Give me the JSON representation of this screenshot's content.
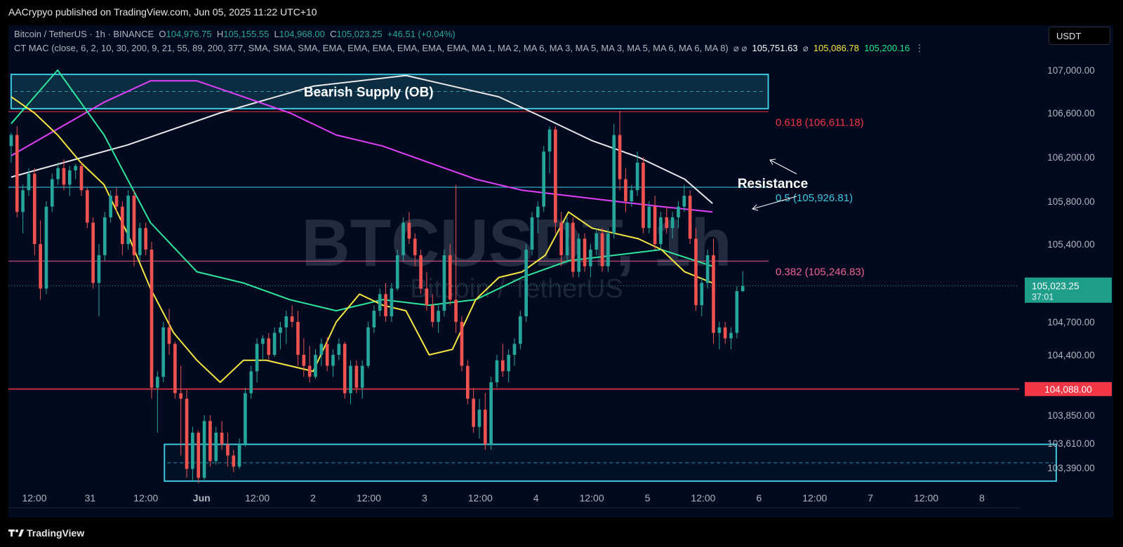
{
  "header": {
    "publisher": "AACrypyo published on TradingView.com, Jun 05, 2025 11:22 UTC+10",
    "symbol_line": "Bitcoin / TetherUS · 1h · BINANCE",
    "ohlc": {
      "o_label": "O",
      "o_value": "104,976.75",
      "h_label": "H",
      "h_value": "105,155.55",
      "l_label": "L",
      "l_value": "104,968.00",
      "c_label": "C",
      "c_value": "105,023.25",
      "change": "+46.51 (+0.04%)"
    },
    "indicator": "CT MAC (close, 6, 2, 10, 30, 200, 9, 21, 55, 89, 200, 377, SMA, SMA, SMA, EMA, EMA, EMA, EMA, EMA, EMA, MA 1, MA 2, MA 6, MA 3, MA 5, MA 3, MA 5, MA 6, MA 6, MA 8)",
    "ind_symbols": "⌀ ⌀",
    "ind_value_1": "105,751.63",
    "ind_value_2": "105,086.78",
    "ind_value_3": "105,200.16",
    "menu_icon": "⋮",
    "currency": "USDT"
  },
  "footer": {
    "brand": "TradingView"
  },
  "colors": {
    "background": "#020a1f",
    "up": "#26a69a",
    "down": "#ef5350",
    "ma_white": "#e8e8e8",
    "ma_magenta": "#e040fb",
    "ma_yellow": "#f5e642",
    "ma_green": "#2ee59d",
    "zone": "#3bc7e0",
    "support": "#f23645"
  },
  "chart_data": {
    "type": "candlestick",
    "watermark_symbol": "BTCUSDT, 1h",
    "watermark_name": "Bitcoin / TetherUS",
    "y_ticks": [
      107000,
      106600,
      106200,
      105800,
      105400,
      104700,
      104400,
      103850,
      103610,
      103390
    ],
    "y_tick_labels": [
      "107,000.00",
      "106,600.00",
      "106,200.00",
      "105,800.00",
      "105,400.00",
      "104,700.00",
      "104,400.00",
      "103,850.00",
      "103,610.00",
      "103,390.00"
    ],
    "x_ticks": [
      "12:00",
      "31",
      "12:00",
      "Jun",
      "12:00",
      "2",
      "12:00",
      "3",
      "12:00",
      "4",
      "12:00",
      "5",
      "12:00",
      "6",
      "12:00",
      "7",
      "12:00",
      "8"
    ],
    "x_tick_hours": [
      0,
      12,
      24,
      36,
      48,
      60,
      72,
      84,
      96,
      108,
      120,
      132,
      144,
      156,
      168,
      180,
      192,
      204
    ],
    "current_price": {
      "value": 105023.25,
      "label": "105,023.25",
      "countdown": "37:01"
    },
    "support_line": {
      "value": 104088,
      "label": "104,088.00"
    },
    "fib_levels": [
      {
        "label": "0.618 (106,611.18)",
        "value": 106611.18,
        "color": "#f23645"
      },
      {
        "label": "0.5 (105,926.81)",
        "value": 105926.81,
        "color": "#3bc7e0"
      },
      {
        "label": "0.382 (105,246.83)",
        "value": 105246.83,
        "color": "#f06292"
      }
    ],
    "zones": [
      {
        "label": "Bearish Supply (OB)",
        "top": 106960,
        "bottom": 106640,
        "start_hour": -5,
        "end_hour": 158
      },
      {
        "label": "",
        "top": 103600,
        "bottom": 103270,
        "start_hour": 28,
        "end_hour": 220
      }
    ],
    "annotation": {
      "label": "Resistance"
    },
    "candles_start_hour": -5,
    "candles": [
      [
        106300,
        106420,
        106150,
        106400
      ],
      [
        106400,
        106480,
        105650,
        105700
      ],
      [
        105700,
        105950,
        105500,
        105900
      ],
      [
        105900,
        106100,
        105850,
        106050
      ],
      [
        106050,
        106100,
        105300,
        105400
      ],
      [
        105400,
        105620,
        104900,
        105000
      ],
      [
        105000,
        105800,
        104950,
        105750
      ],
      [
        105750,
        106050,
        105700,
        106000
      ],
      [
        106000,
        106150,
        105950,
        106100
      ],
      [
        106100,
        106180,
        105900,
        105950
      ],
      [
        105950,
        106120,
        105850,
        106080
      ],
      [
        106080,
        106140,
        106000,
        106120
      ],
      [
        106120,
        106150,
        105850,
        105900
      ],
      [
        105900,
        105920,
        105550,
        105600
      ],
      [
        105600,
        105650,
        105000,
        105050
      ],
      [
        105050,
        105400,
        104750,
        105300
      ],
      [
        105300,
        105700,
        105250,
        105650
      ],
      [
        105650,
        105900,
        105600,
        105850
      ],
      [
        105850,
        105920,
        105700,
        105750
      ],
      [
        105750,
        105800,
        105300,
        105400
      ],
      [
        105400,
        105900,
        105350,
        105850
      ],
      [
        105850,
        105900,
        105200,
        105300
      ],
      [
        105300,
        105600,
        105250,
        105550
      ],
      [
        105550,
        105600,
        105300,
        105350
      ],
      [
        105350,
        105420,
        104000,
        104100
      ],
      [
        104100,
        104250,
        103700,
        104200
      ],
      [
        104200,
        104700,
        104150,
        104650
      ],
      [
        104650,
        104820,
        104400,
        104500
      ],
      [
        104500,
        104520,
        104000,
        104050
      ],
      [
        104050,
        104300,
        103500,
        104000
      ],
      [
        104000,
        104080,
        103300,
        103380
      ],
      [
        103380,
        103750,
        103280,
        103700
      ],
      [
        103700,
        103720,
        103250,
        103300
      ],
      [
        103300,
        103850,
        103280,
        103800
      ],
      [
        103800,
        103850,
        103400,
        103450
      ],
      [
        103450,
        103750,
        103420,
        103700
      ],
      [
        103700,
        103800,
        103550,
        103600
      ],
      [
        103600,
        103700,
        103400,
        103500
      ],
      [
        103500,
        103550,
        103350,
        103400
      ],
      [
        103400,
        103650,
        103380,
        103600
      ],
      [
        103600,
        104100,
        103580,
        104050
      ],
      [
        104050,
        104300,
        104000,
        104250
      ],
      [
        104250,
        104550,
        104150,
        104500
      ],
      [
        104500,
        104580,
        104350,
        104550
      ],
      [
        104550,
        104600,
        104350,
        104400
      ],
      [
        104400,
        104650,
        104380,
        104600
      ],
      [
        104600,
        104700,
        104450,
        104650
      ],
      [
        104650,
        104800,
        104500,
        104750
      ],
      [
        104750,
        104850,
        104650,
        104700
      ],
      [
        104700,
        104800,
        104300,
        104400
      ],
      [
        104400,
        104550,
        104200,
        104300
      ],
      [
        104300,
        104480,
        104150,
        104200
      ],
      [
        104200,
        104450,
        104180,
        104400
      ],
      [
        104400,
        104550,
        104300,
        104500
      ],
      [
        104500,
        104560,
        104250,
        104300
      ],
      [
        104300,
        104450,
        104200,
        104400
      ],
      [
        104400,
        104550,
        104350,
        104500
      ],
      [
        104500,
        104520,
        104000,
        104050
      ],
      [
        104050,
        104350,
        103950,
        104300
      ],
      [
        104300,
        104350,
        104050,
        104100
      ],
      [
        104100,
        104350,
        104000,
        104300
      ],
      [
        104300,
        104700,
        104280,
        104650
      ],
      [
        104650,
        104850,
        104600,
        104800
      ],
      [
        104800,
        105000,
        104750,
        104950
      ],
      [
        104950,
        105050,
        104700,
        104750
      ],
      [
        104750,
        105050,
        104700,
        105000
      ],
      [
        105000,
        105350,
        104980,
        105300
      ],
      [
        105300,
        105650,
        105250,
        105600
      ],
      [
        105600,
        105700,
        105400,
        105450
      ],
      [
        105450,
        105500,
        105200,
        105300
      ],
      [
        105300,
        105350,
        104950,
        105000
      ],
      [
        105000,
        105150,
        104800,
        104850
      ],
      [
        104850,
        104950,
        104650,
        104700
      ],
      [
        104700,
        104850,
        104600,
        104800
      ],
      [
        104800,
        105350,
        104750,
        105300
      ],
      [
        105300,
        105400,
        104850,
        104900
      ],
      [
        104900,
        105950,
        104600,
        104700
      ],
      [
        104700,
        104750,
        104250,
        104300
      ],
      [
        104300,
        104350,
        103950,
        104000
      ],
      [
        104000,
        104100,
        103700,
        103750
      ],
      [
        103750,
        104000,
        103650,
        103900
      ],
      [
        103900,
        104050,
        103550,
        103600
      ],
      [
        103600,
        104200,
        103550,
        104150
      ],
      [
        104150,
        104400,
        104100,
        104350
      ],
      [
        104350,
        104500,
        104200,
        104250
      ],
      [
        104250,
        104450,
        104150,
        104400
      ],
      [
        104400,
        104550,
        104300,
        104500
      ],
      [
        104500,
        104800,
        104450,
        104750
      ],
      [
        104750,
        105400,
        104700,
        105350
      ],
      [
        105350,
        105700,
        105300,
        105650
      ],
      [
        105650,
        105800,
        105500,
        105750
      ],
      [
        105750,
        106300,
        105700,
        106250
      ],
      [
        106250,
        106480,
        106050,
        106450
      ],
      [
        106450,
        106480,
        105500,
        105600
      ],
      [
        105600,
        105700,
        105200,
        105300
      ],
      [
        105300,
        105650,
        105250,
        105600
      ],
      [
        105600,
        105650,
        105100,
        105150
      ],
      [
        105150,
        105500,
        105100,
        105450
      ],
      [
        105450,
        105500,
        105150,
        105200
      ],
      [
        105200,
        105400,
        105100,
        105350
      ],
      [
        105350,
        105550,
        105300,
        105500
      ],
      [
        105500,
        105550,
        105150,
        105200
      ],
      [
        105200,
        105550,
        105150,
        105500
      ],
      [
        105500,
        106500,
        105450,
        106400
      ],
      [
        106400,
        106620,
        105900,
        106000
      ],
      [
        106000,
        106100,
        105700,
        105800
      ],
      [
        105800,
        105950,
        105750,
        105900
      ],
      [
        105900,
        106250,
        105850,
        106150
      ],
      [
        106150,
        106200,
        105500,
        105550
      ],
      [
        105550,
        105800,
        105500,
        105750
      ],
      [
        105750,
        105850,
        105350,
        105400
      ],
      [
        105400,
        105700,
        105350,
        105650
      ],
      [
        105650,
        105750,
        105500,
        105550
      ],
      [
        105550,
        105700,
        105450,
        105650
      ],
      [
        105650,
        105800,
        105550,
        105750
      ],
      [
        105750,
        105950,
        105700,
        105850
      ],
      [
        105850,
        105900,
        105400,
        105450
      ],
      [
        105450,
        105550,
        104800,
        104850
      ],
      [
        104850,
        105100,
        104750,
        105050
      ],
      [
        105050,
        105350,
        105000,
        105300
      ],
      [
        105300,
        105450,
        104500,
        104600
      ],
      [
        104600,
        104700,
        104450,
        104650
      ],
      [
        104650,
        104700,
        104500,
        104550
      ],
      [
        104550,
        104650,
        104450,
        104600
      ],
      [
        104600,
        105020,
        104550,
        104976.75
      ],
      [
        104976.75,
        105155.55,
        104968,
        105023.25
      ]
    ],
    "moving_averages": [
      {
        "name": "",
        "color": "#e8e8e8",
        "x": [
          -5,
          20,
          40,
          60,
          80,
          100,
          110,
          120,
          130,
          140,
          146
        ],
        "y": [
          108000,
          107700,
          107400,
          107150,
          106950,
          106750,
          106550,
          106350,
          106200,
          106000,
          105780
        ]
      },
      {
        "name": "",
        "color": "#e040fb",
        "x": [
          -5,
          5,
          15,
          25,
          35,
          45,
          55,
          65,
          75,
          85,
          95,
          105,
          115,
          125,
          135,
          146
        ],
        "y": [
          107800,
          107550,
          107300,
          107100,
          106900,
          106750,
          106600,
          106400,
          106300,
          106150,
          106000,
          105900,
          105850,
          105800,
          105750,
          105700
        ]
      },
      {
        "name": "",
        "color": "#2ee59d",
        "x": [
          -5,
          5,
          15,
          25,
          35,
          45,
          55,
          65,
          75,
          85,
          95,
          105,
          115,
          125,
          135,
          146
        ],
        "y": [
          107500,
          107000,
          106400,
          105600,
          105150,
          105050,
          104900,
          104800,
          104900,
          104850,
          104900,
          105100,
          105250,
          105300,
          105350,
          105200
        ]
      },
      {
        "name": "",
        "color": "#f5e642",
        "x": [
          -5,
          0,
          5,
          10,
          15,
          20,
          25,
          30,
          35,
          40,
          45,
          50,
          55,
          60,
          65,
          70,
          75,
          80,
          85,
          90,
          95,
          100,
          105,
          110,
          115,
          120,
          125,
          130,
          135,
          140,
          146
        ],
        "y": [
          106750,
          106600,
          106400,
          106150,
          105950,
          105500,
          105000,
          104600,
          104350,
          104150,
          104350,
          104350,
          104300,
          104250,
          104700,
          104950,
          104850,
          104800,
          104400,
          104450,
          104900,
          105100,
          105150,
          105300,
          105700,
          105550,
          105500,
          105450,
          105350,
          105150,
          105050
        ]
      }
    ]
  }
}
